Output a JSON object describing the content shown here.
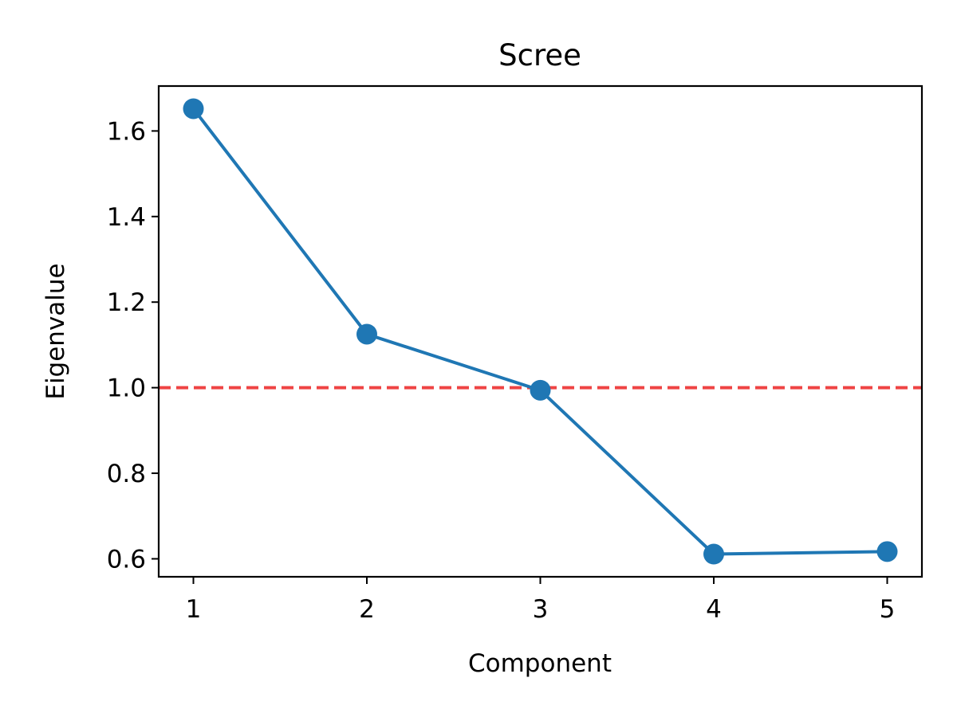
{
  "chart_data": {
    "type": "line",
    "title": "Scree",
    "xlabel": "Component",
    "ylabel": "Eigenvalue",
    "x": [
      1,
      2,
      3,
      4,
      5
    ],
    "series": [
      {
        "values": [
          1.652,
          1.125,
          0.994,
          0.611,
          0.617
        ],
        "color": "#1f77b4"
      }
    ],
    "reference_line": {
      "y": 1.0,
      "color": "#ef4444",
      "style": "dashed"
    },
    "xlim": [
      0.8,
      5.2
    ],
    "ylim": [
      0.558,
      1.705
    ],
    "xticks": [
      "1",
      "2",
      "3",
      "4",
      "5"
    ],
    "yticks": [
      "0.6",
      "0.8",
      "1.0",
      "1.2",
      "1.4",
      "1.6"
    ],
    "grid": false,
    "legend": false
  }
}
